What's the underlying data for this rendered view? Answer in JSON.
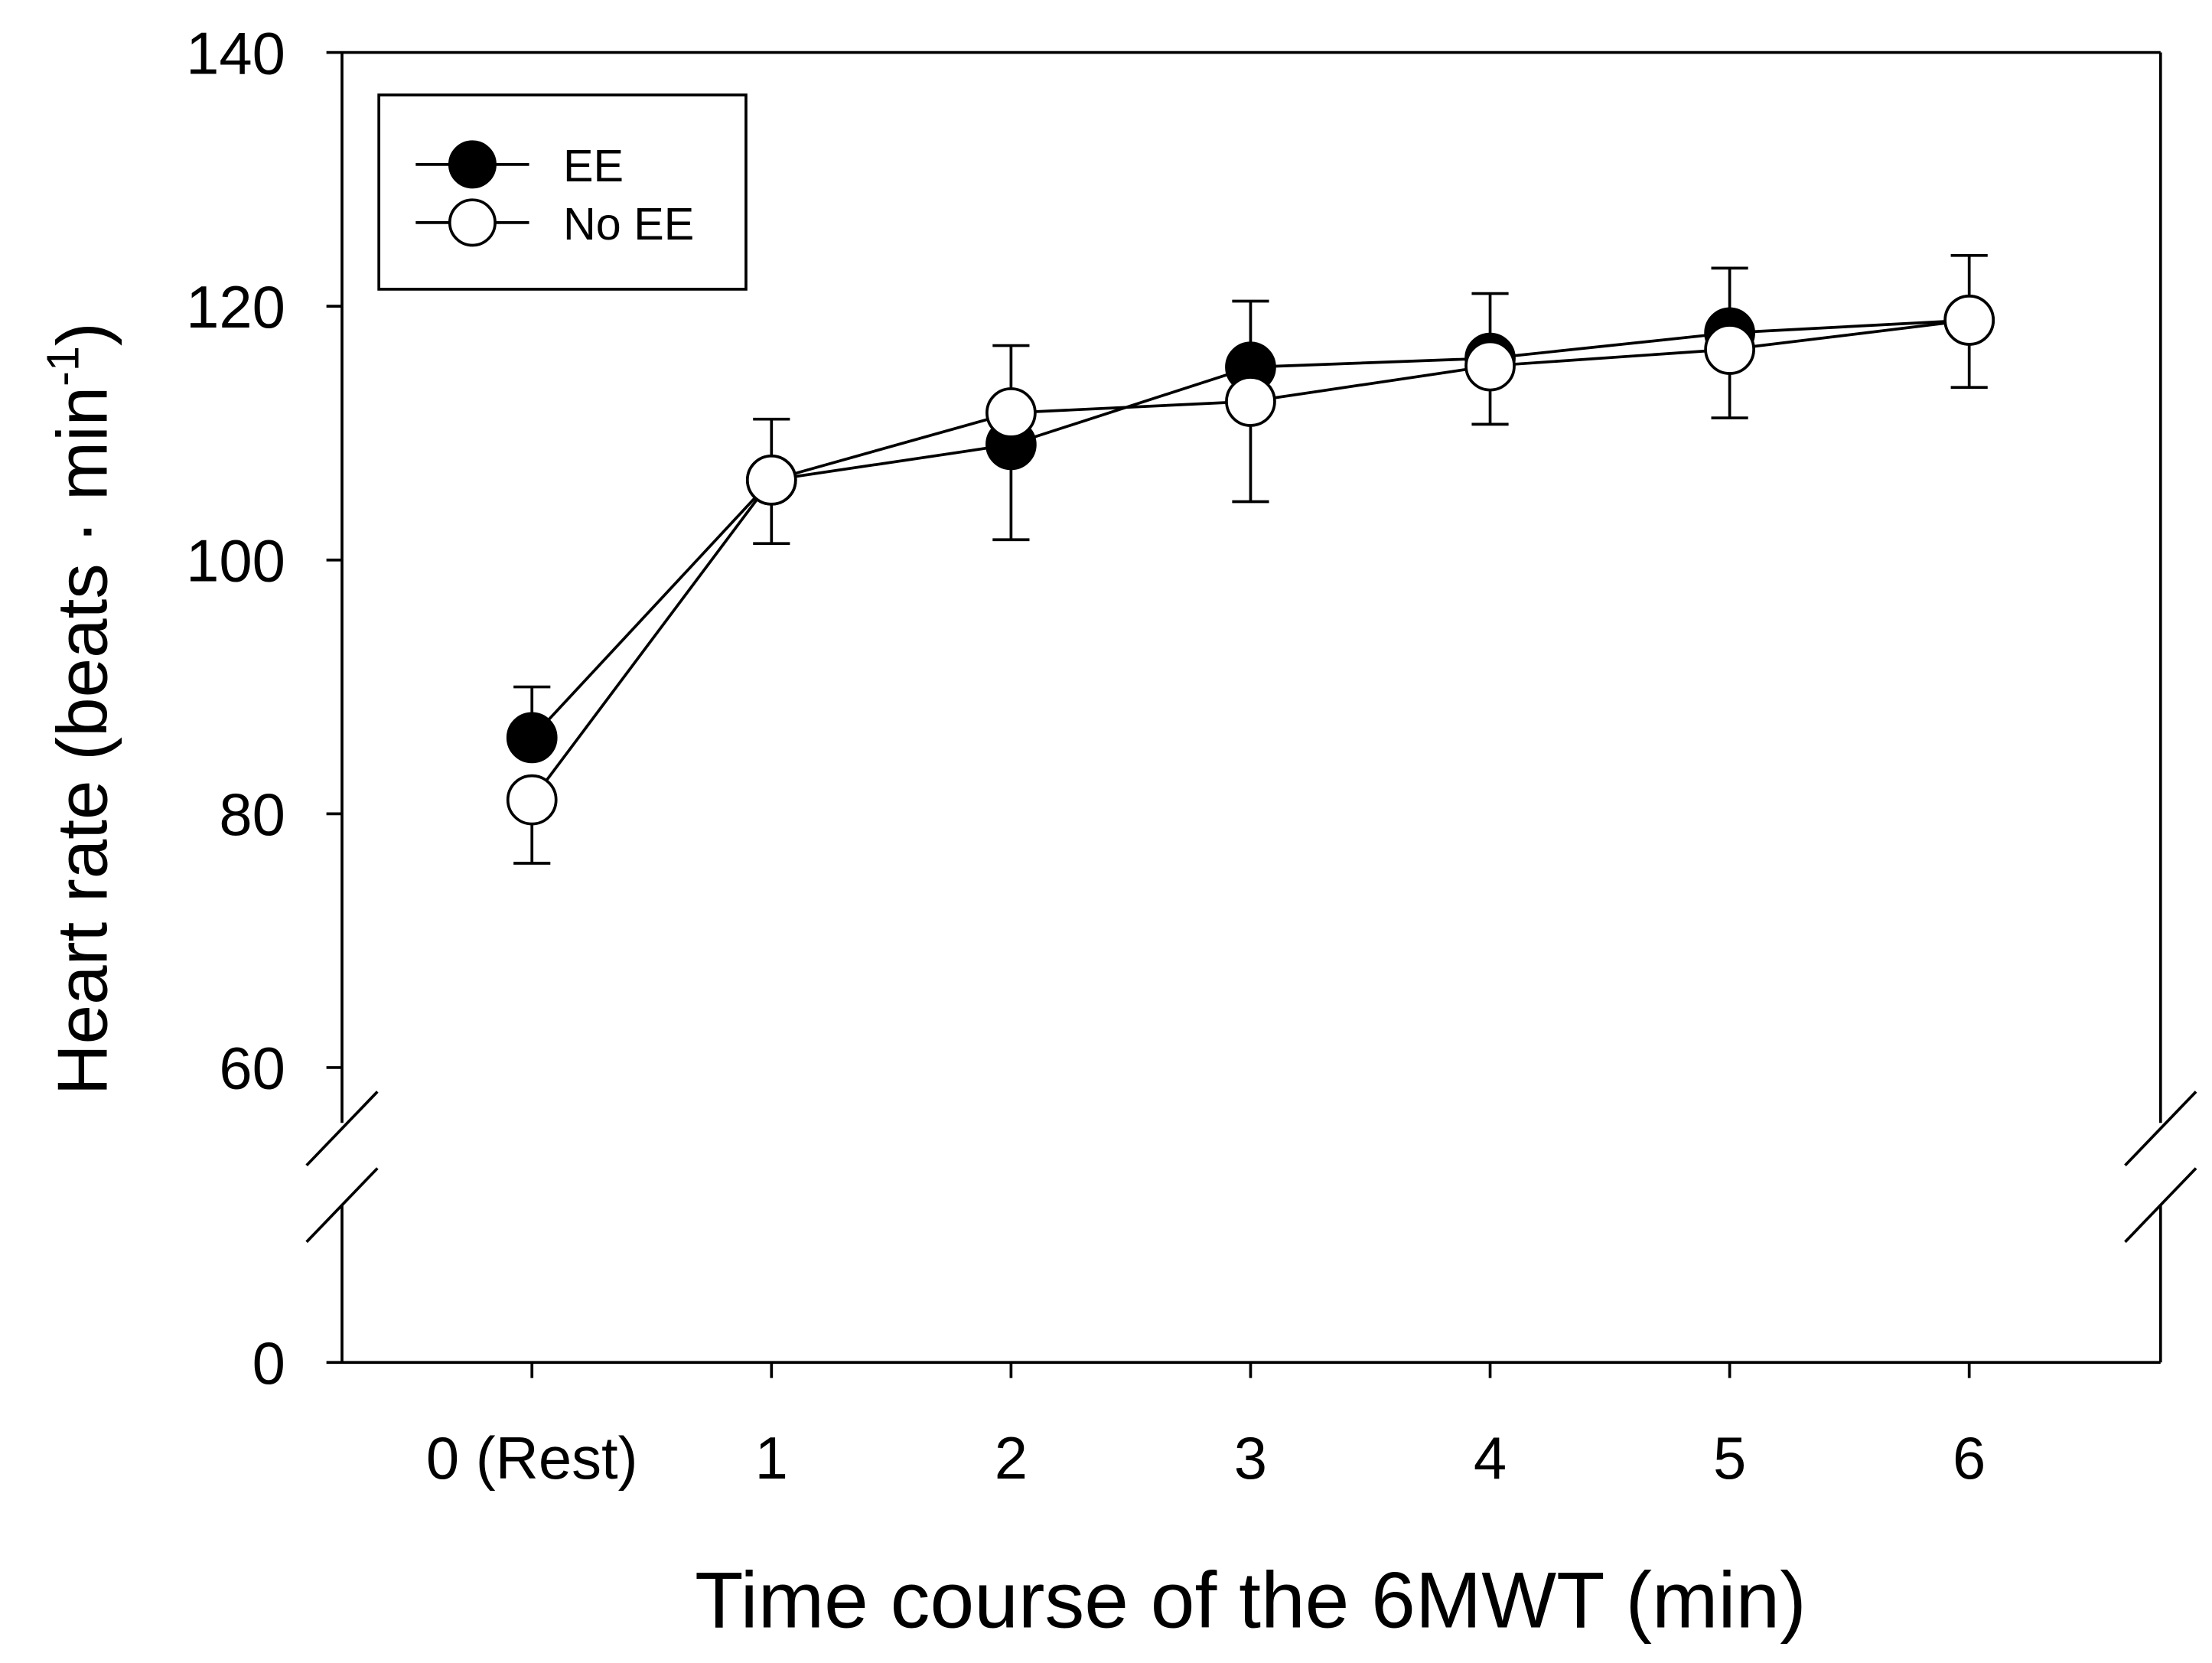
{
  "chart_data": {
    "type": "line",
    "xlabel": "Time course of the 6MWT (min)",
    "ylabel": "Heart rate (beats · min",
    "ylabel_sup": "-1",
    "ylabel_close": ")",
    "categories": [
      "0 (Rest)",
      "1",
      "2",
      "3",
      "4",
      "5",
      "6"
    ],
    "ylim": [
      0,
      140
    ],
    "y_break": [
      60,
      0
    ],
    "yticks": [
      "0",
      "60",
      "80",
      "100",
      "120",
      "140"
    ],
    "legend_position": "top-left",
    "grid": false,
    "series": [
      {
        "name": "EE",
        "marker": "filled-circle",
        "color": "#000000",
        "values": [
          86,
          106.3,
          109.1,
          115.2,
          115.9,
          117.9,
          118.9
        ],
        "sd": [
          4,
          4.8,
          7.5,
          5.2,
          5.1,
          5.1,
          5.1
        ],
        "err_dir": [
          1,
          1,
          -1,
          1,
          1,
          1,
          1
        ]
      },
      {
        "name": "No EE",
        "marker": "open-circle",
        "color": "#ffffff",
        "values": [
          81.1,
          106.3,
          111.6,
          112.5,
          115.3,
          116.6,
          118.9
        ],
        "sd": [
          5,
          5,
          5.3,
          7.9,
          4.6,
          5.4,
          5.3
        ],
        "err_dir": [
          -1,
          -1,
          1,
          -1,
          -1,
          -1,
          -1
        ]
      }
    ]
  }
}
